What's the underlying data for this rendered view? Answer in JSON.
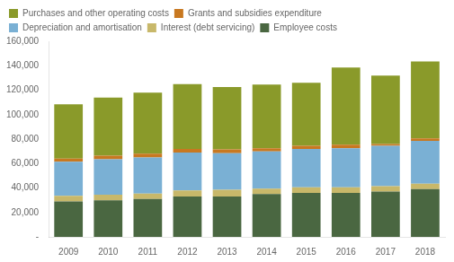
{
  "chart_data": {
    "type": "bar",
    "stacked": true,
    "categories": [
      "2009",
      "2010",
      "2011",
      "2012",
      "2013",
      "2014",
      "2015",
      "2016",
      "2017",
      "2018"
    ],
    "series": [
      {
        "name": "Employee costs",
        "color": "#4a6741",
        "values": [
          29000,
          30000,
          31000,
          33000,
          33000,
          35000,
          36000,
          36000,
          37000,
          39000
        ]
      },
      {
        "name": "Interest (debt servicing)",
        "color": "#c8b86a",
        "values": [
          4500,
          4500,
          4500,
          5000,
          5500,
          4500,
          4500,
          4500,
          4500,
          4500
        ]
      },
      {
        "name": "Depreciation and amortisation",
        "color": "#7ab0d4",
        "values": [
          28000,
          29000,
          29500,
          31000,
          30000,
          30500,
          31500,
          32000,
          33000,
          35000
        ]
      },
      {
        "name": "Grants and subsidies expenditure",
        "color": "#c87820",
        "values": [
          2500,
          3000,
          3000,
          3000,
          3000,
          2500,
          2500,
          3000,
          1500,
          2000
        ]
      },
      {
        "name": "Purchases and other operating costs",
        "color": "#8a9a2a",
        "values": [
          44500,
          47500,
          50000,
          53000,
          51000,
          52000,
          51500,
          63000,
          56000,
          63000
        ]
      }
    ],
    "ylim": [
      0,
      160000
    ],
    "yticks": [
      {
        "value": 0,
        "label": "-"
      },
      {
        "value": 20000,
        "label": "20,000"
      },
      {
        "value": 40000,
        "label": "40,000"
      },
      {
        "value": 60000,
        "label": "60,000"
      },
      {
        "value": 80000,
        "label": "80,000"
      },
      {
        "value": 100000,
        "label": "100,000"
      },
      {
        "value": 120000,
        "label": "120,000"
      },
      {
        "value": 140000,
        "label": "140,000"
      },
      {
        "value": 160000,
        "label": "160,000"
      }
    ],
    "grid": false,
    "legend": "top"
  }
}
